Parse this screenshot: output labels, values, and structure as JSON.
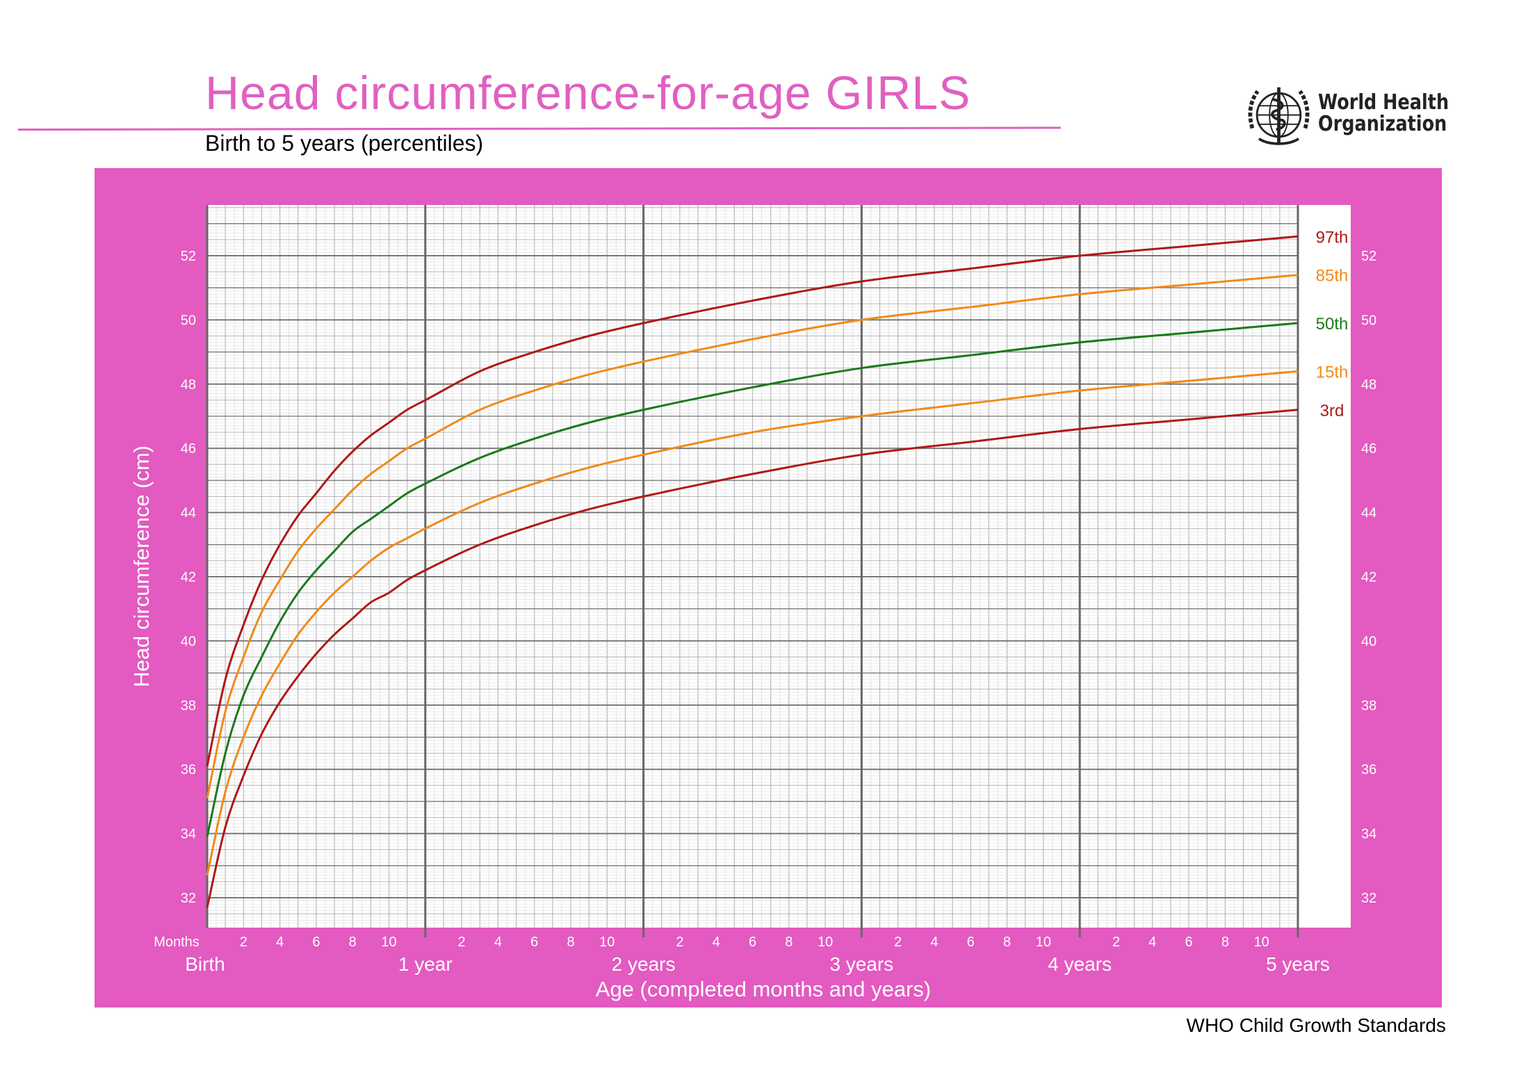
{
  "header": {
    "title": "Head circumference-for-age  GIRLS",
    "subtitle": "Birth to 5 years (percentiles)"
  },
  "logo": {
    "icon": "who-emblem-icon",
    "line1": "World Health",
    "line2": "Organization"
  },
  "footer": {
    "text": "WHO Child Growth Standards"
  },
  "colors": {
    "title": "#e060c0",
    "panel": "#e35ac0",
    "p3_p97": "#b01818",
    "p15_p85": "#f08a1a",
    "p50": "#1a7a1a",
    "grid_major": "#666666",
    "grid_minor": "#c8c8c8"
  },
  "chart_data": {
    "type": "line",
    "title": "Head circumference-for-age  GIRLS",
    "subtitle": "Birth to 5 years (percentiles)",
    "xlabel": "Age (completed months and years)",
    "ylabel": "Head circumference (cm)",
    "x_unit_label": "Months",
    "xlim": [
      0,
      60
    ],
    "ylim": [
      31,
      53.5
    ],
    "grid": true,
    "y_ticks": [
      32,
      34,
      36,
      38,
      40,
      42,
      44,
      46,
      48,
      50,
      52
    ],
    "x_month_ticks": [
      2,
      4,
      6,
      8,
      10
    ],
    "x_year_labels": [
      "Birth",
      "1 year",
      "2 years",
      "3 years",
      "4 years",
      "5 years"
    ],
    "x": [
      0,
      1,
      2,
      3,
      4,
      5,
      6,
      7,
      8,
      9,
      10,
      11,
      12,
      15,
      18,
      21,
      24,
      30,
      36,
      42,
      48,
      54,
      60
    ],
    "series": [
      {
        "name": "97th",
        "color": "#b01818",
        "values": [
          36.1,
          38.8,
          40.5,
          41.9,
          43.0,
          43.9,
          44.6,
          45.3,
          45.9,
          46.4,
          46.8,
          47.2,
          47.5,
          48.4,
          49.0,
          49.5,
          49.9,
          50.6,
          51.2,
          51.6,
          52.0,
          52.3,
          52.6
        ]
      },
      {
        "name": "85th",
        "color": "#f08a1a",
        "values": [
          35.1,
          37.8,
          39.5,
          40.9,
          41.9,
          42.8,
          43.5,
          44.1,
          44.7,
          45.2,
          45.6,
          46.0,
          46.3,
          47.2,
          47.8,
          48.3,
          48.7,
          49.4,
          50.0,
          50.4,
          50.8,
          51.1,
          51.4
        ]
      },
      {
        "name": "50th",
        "color": "#1a7a1a",
        "values": [
          33.9,
          36.5,
          38.3,
          39.5,
          40.6,
          41.5,
          42.2,
          42.8,
          43.4,
          43.8,
          44.2,
          44.6,
          44.9,
          45.7,
          46.3,
          46.8,
          47.2,
          47.9,
          48.5,
          48.9,
          49.3,
          49.6,
          49.9
        ]
      },
      {
        "name": "15th",
        "color": "#f08a1a",
        "values": [
          32.7,
          35.3,
          37.0,
          38.3,
          39.3,
          40.2,
          40.9,
          41.5,
          42.0,
          42.5,
          42.9,
          43.2,
          43.5,
          44.3,
          44.9,
          45.4,
          45.8,
          46.5,
          47.0,
          47.4,
          47.8,
          48.1,
          48.4
        ]
      },
      {
        "name": "3rd",
        "color": "#b01818",
        "values": [
          31.7,
          34.2,
          35.8,
          37.1,
          38.1,
          38.9,
          39.6,
          40.2,
          40.7,
          41.2,
          41.5,
          41.9,
          42.2,
          43.0,
          43.6,
          44.1,
          44.5,
          45.2,
          45.8,
          46.2,
          46.6,
          46.9,
          47.2
        ]
      }
    ]
  }
}
